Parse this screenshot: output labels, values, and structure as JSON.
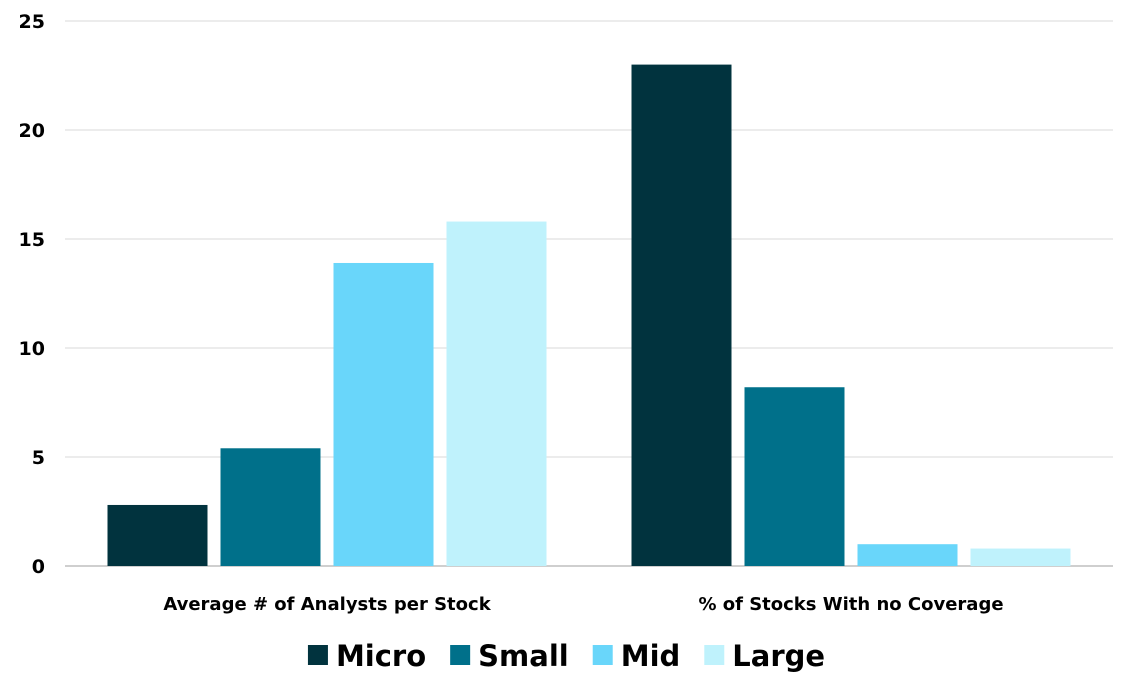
{
  "chart_data": {
    "type": "bar",
    "title": "",
    "xlabel": "",
    "ylabel": "",
    "categories": [
      "Average # of Analysts per Stock",
      "% of Stocks With no Coverage"
    ],
    "series": [
      {
        "name": "Micro",
        "color": "#01333e",
        "values": [
          2.8,
          23.0
        ]
      },
      {
        "name": "Small",
        "color": "#00708a",
        "values": [
          5.4,
          8.2
        ]
      },
      {
        "name": "Mid",
        "color": "#69d6fa",
        "values": [
          13.9,
          1.0
        ]
      },
      {
        "name": "Large",
        "color": "#bff2fc",
        "values": [
          15.8,
          0.8
        ]
      }
    ],
    "ylim": [
      0,
      25
    ],
    "yticks": [
      "0",
      "5",
      "10",
      "15",
      "20",
      "25"
    ],
    "grid": true,
    "gridline_color": "#d9d9d9",
    "legend_position": "bottom"
  }
}
